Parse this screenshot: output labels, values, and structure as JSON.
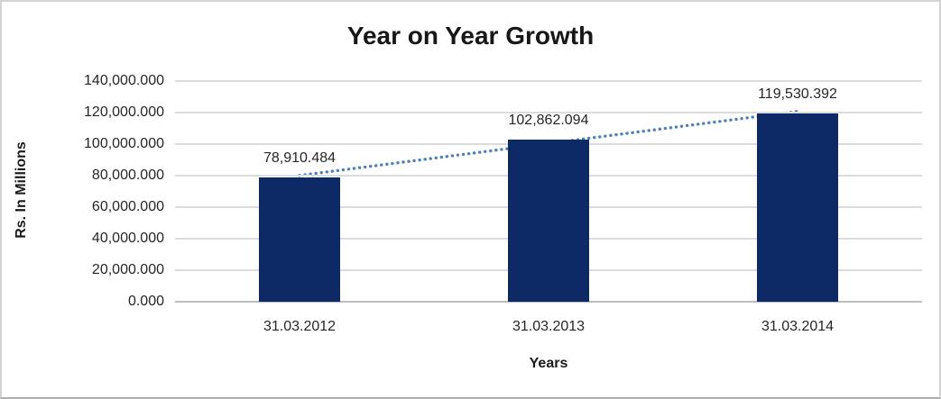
{
  "chart_data": {
    "type": "bar",
    "title": "Year on Year Growth",
    "xlabel": "Years",
    "ylabel": "Rs. In Millions",
    "categories": [
      "31.03.2012",
      "31.03.2013",
      "31.03.2014"
    ],
    "values": [
      78910.484,
      102862.094,
      119530.392
    ],
    "data_labels": [
      "78,910.484",
      "102,862.094",
      "119,530.392"
    ],
    "ylim": [
      0,
      140000
    ],
    "ytick_step": 20000,
    "ytick_labels": [
      "0.000",
      "20,000.000",
      "40,000.000",
      "60,000.000",
      "80,000.000",
      "100,000.000",
      "120,000.000",
      "140,000.000"
    ],
    "grid": true,
    "legend": "none",
    "bar_color": "#0d2a66",
    "gridline_color": "#dcdcdc",
    "axis_line_color": "#bdbdbd",
    "trendline": {
      "type": "linear",
      "style": "dotted",
      "color": "#4f81bd"
    }
  }
}
